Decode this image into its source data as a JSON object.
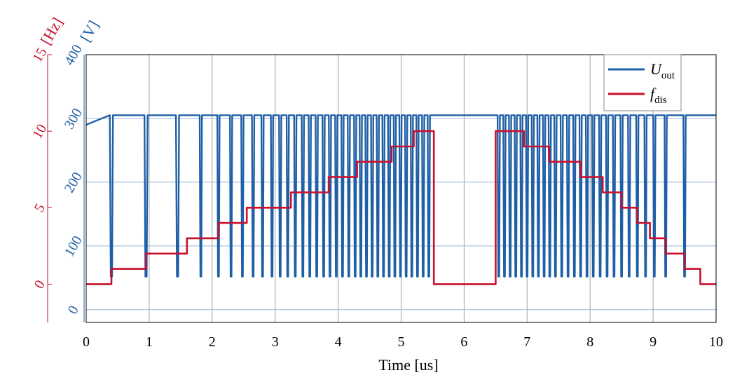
{
  "colors": {
    "voltage": "#1f5fa6",
    "frequency": "#c8102e",
    "grid": "#9bb7d4",
    "axis": "#000000"
  },
  "chart_data": {
    "type": "line",
    "xlabel": "Time [us]",
    "xlim": [
      0,
      10
    ],
    "x_ticks": [
      0,
      1,
      2,
      3,
      4,
      5,
      6,
      7,
      8,
      9,
      10
    ],
    "y_left_outer": {
      "unit_label": "[Hz]",
      "ylim": [
        -2.5,
        15
      ],
      "ticks": [
        0,
        5,
        10,
        15
      ],
      "color": "#c8102e"
    },
    "y_left_inner": {
      "unit_label": "[V]",
      "ylim": [
        -20,
        400
      ],
      "ticks": [
        0,
        100,
        200,
        300,
        400
      ],
      "color": "#1f5fa6"
    },
    "grid": true,
    "legend_position": "top-right",
    "legend": [
      {
        "main": "U",
        "sub": "out",
        "color": "#1f5fa6"
      },
      {
        "main": "f",
        "sub": "dis",
        "color": "#c8102e"
      }
    ],
    "series": [
      {
        "name": "U_out",
        "axis": "y_left_inner",
        "high_level_V": 305,
        "low_level_V": 52,
        "pulse_times_us": [
          0.4,
          0.95,
          1.45,
          1.82,
          2.1,
          2.3,
          2.48,
          2.65,
          2.8,
          2.95,
          3.08,
          3.2,
          3.32,
          3.44,
          3.55,
          3.66,
          3.77,
          3.87,
          3.97,
          4.07,
          4.17,
          4.27,
          4.36,
          4.45,
          4.54,
          4.63,
          4.72,
          4.81,
          4.9,
          4.99,
          5.08,
          5.17,
          5.26,
          5.35,
          5.44,
          6.55,
          6.64,
          6.73,
          6.82,
          6.91,
          7.0,
          7.09,
          7.18,
          7.27,
          7.36,
          7.45,
          7.55,
          7.65,
          7.75,
          7.85,
          7.95,
          8.05,
          8.16,
          8.27,
          8.38,
          8.5,
          8.62,
          8.75,
          8.88,
          9.02,
          9.2,
          9.5
        ]
      },
      {
        "name": "f_dis",
        "axis": "y_left_outer",
        "steps": [
          {
            "x0": 0.0,
            "x1": 0.4,
            "y": 0.0
          },
          {
            "x0": 0.4,
            "x1": 0.95,
            "y": 1.0
          },
          {
            "x0": 0.95,
            "x1": 1.6,
            "y": 2.0
          },
          {
            "x0": 1.6,
            "x1": 2.1,
            "y": 3.0
          },
          {
            "x0": 2.1,
            "x1": 2.55,
            "y": 4.0
          },
          {
            "x0": 2.55,
            "x1": 3.25,
            "y": 5.0
          },
          {
            "x0": 3.25,
            "x1": 3.85,
            "y": 6.0
          },
          {
            "x0": 3.85,
            "x1": 4.3,
            "y": 7.0
          },
          {
            "x0": 4.3,
            "x1": 4.85,
            "y": 8.0
          },
          {
            "x0": 4.85,
            "x1": 5.2,
            "y": 9.0
          },
          {
            "x0": 5.2,
            "x1": 5.52,
            "y": 10.0
          },
          {
            "x0": 5.52,
            "x1": 6.5,
            "y": 0.0
          },
          {
            "x0": 6.5,
            "x1": 6.95,
            "y": 10.0
          },
          {
            "x0": 6.95,
            "x1": 7.35,
            "y": 9.0
          },
          {
            "x0": 7.35,
            "x1": 7.85,
            "y": 8.0
          },
          {
            "x0": 7.85,
            "x1": 8.2,
            "y": 7.0
          },
          {
            "x0": 8.2,
            "x1": 8.5,
            "y": 6.0
          },
          {
            "x0": 8.5,
            "x1": 8.75,
            "y": 5.0
          },
          {
            "x0": 8.75,
            "x1": 8.95,
            "y": 4.0
          },
          {
            "x0": 8.95,
            "x1": 9.2,
            "y": 3.0
          },
          {
            "x0": 9.2,
            "x1": 9.5,
            "y": 2.0
          },
          {
            "x0": 9.5,
            "x1": 9.75,
            "y": 1.0
          },
          {
            "x0": 9.75,
            "x1": 10.0,
            "y": 0.0
          }
        ]
      }
    ]
  }
}
